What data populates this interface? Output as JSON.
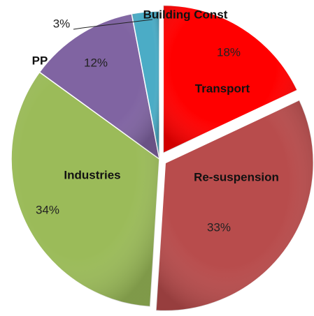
{
  "chart_data": {
    "type": "pie",
    "categories": [
      "Transport",
      "Re-suspension",
      "Industries",
      "PP",
      "Building Const"
    ],
    "values": [
      18,
      33,
      34,
      12,
      3
    ],
    "value_labels": [
      "18%",
      "33%",
      "34%",
      "12%",
      "3%"
    ],
    "colors": [
      "#ff0000",
      "#b84c4c",
      "#9bbb59",
      "#8064a2",
      "#4bacc6"
    ],
    "exploded": [
      true,
      true,
      false,
      false,
      false
    ]
  }
}
